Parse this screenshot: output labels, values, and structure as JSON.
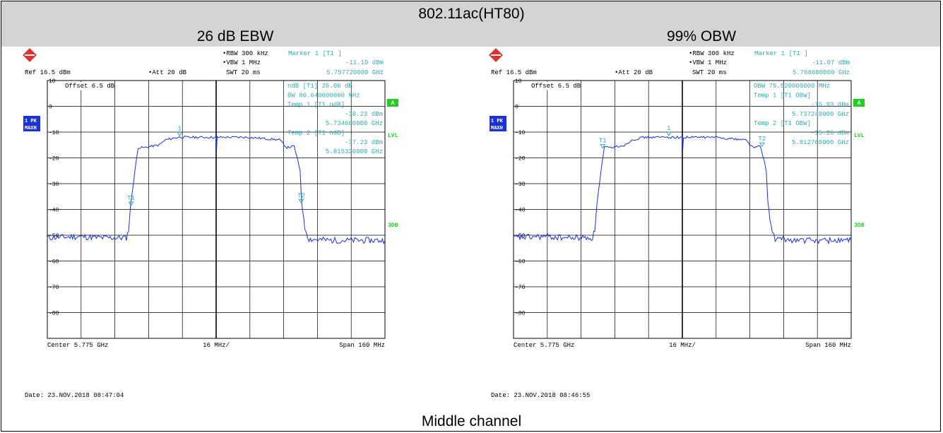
{
  "title": "802.11ac(HT80)",
  "footer": "Middle channel",
  "colors": {
    "text": "#000000",
    "cyan": "#33aaaa",
    "trace": "#1a33d9",
    "green": "#22cc22",
    "header_bg": "#d4d4d4"
  },
  "panels": [
    {
      "subtitle": "26 dB EBW",
      "rbw": "RBW 300 kHz",
      "vbw": "VBW 1 MHz",
      "swt": "SWT 20 ms",
      "ref": "Ref  16.5 dBm",
      "att": "Att  20 dB",
      "marker_title": "Marker 1 [T1 ]",
      "marker_level": "-11.19 dBm",
      "marker_freq": "5.757720000 GHz",
      "offset": "Offset  6.5 dB",
      "info_lines": [
        "ndB [T1]     26.00 dB",
        "BW  80.640000000 MHz",
        "Temp 1 [T1 ndB]",
        "-38.23 dBm",
        "5.734680000 GHz",
        "Temp 2 [T1 ndB]",
        "-37.23 dBm",
        "5.815320000 GHz"
      ],
      "left_box": [
        "1 PK",
        "MAXH"
      ],
      "right_labels": [
        "A",
        "LVL",
        "3DB"
      ],
      "center": "Center 5.775 GHz",
      "per_div": "16 MHz/",
      "span": "Span 160 MHz",
      "date": "Date: 23.NOV.2018  08:47:04",
      "markers": [
        {
          "label": "1",
          "freq_ghz": 5.75772,
          "level_dbm": -11.19
        },
        {
          "label": "T1",
          "freq_ghz": 5.73468,
          "level_dbm": -38.23
        },
        {
          "label": "T2",
          "freq_ghz": 5.81532,
          "level_dbm": -37.23
        }
      ]
    },
    {
      "subtitle": "99% OBW",
      "rbw": "RBW 300 kHz",
      "vbw": "VBW 1 MHz",
      "swt": "SWT 20 ms",
      "ref": "Ref  16.5 dBm",
      "att": "Att  20 dB",
      "marker_title": "Marker 1 [T1 ]",
      "marker_level": "-11.07 dBm",
      "marker_freq": "5.768600000 GHz",
      "offset": "Offset  6.5 dB",
      "info_lines": [
        "OBW 75.520000000 MHz",
        "Temp 1 [T1 OBW]",
        "-15.93 dBm",
        "5.737240000 GHz",
        "Temp 2 [T1 OBW]",
        "-15.26 dBm",
        "5.812760000 GHz"
      ],
      "left_box": [
        "1 PK",
        "MAXH"
      ],
      "right_labels": [
        "A",
        "LVL",
        "3DB"
      ],
      "center": "Center 5.775 GHz",
      "per_div": "16 MHz/",
      "span": "Span 160 MHz",
      "date": "Date: 23.NOV.2018  08:46:55",
      "markers": [
        {
          "label": "1",
          "freq_ghz": 5.7686,
          "level_dbm": -11.07
        },
        {
          "label": "T1",
          "freq_ghz": 5.73724,
          "level_dbm": -15.93
        },
        {
          "label": "T2",
          "freq_ghz": 5.81276,
          "level_dbm": -15.26
        }
      ]
    }
  ],
  "chart_data": [
    {
      "type": "line",
      "title": "26 dB EBW",
      "xlabel": "",
      "ylabel": "",
      "xlim": [
        5.695,
        5.855
      ],
      "ylim": [
        -90,
        10
      ],
      "yticks": [
        10,
        0,
        -10,
        -20,
        -30,
        -40,
        -50,
        -60,
        -70,
        -80
      ],
      "ytick_labels": [
        "10",
        "0",
        "-10",
        "-20",
        "-30",
        "-40",
        "-50",
        "-60",
        "-70",
        "-80"
      ],
      "grid": true,
      "series": [
        {
          "x": [
            5.695,
            5.71,
            5.72,
            5.7325,
            5.7335,
            5.7345,
            5.7365,
            5.738,
            5.741,
            5.748,
            5.751,
            5.757,
            5.775,
            5.7752,
            5.7755,
            5.776,
            5.79,
            5.805,
            5.8085,
            5.812,
            5.8148,
            5.8155,
            5.817,
            5.819,
            5.83,
            5.855
          ],
          "y": [
            -51,
            -50.5,
            -51,
            -51,
            -48,
            -38,
            -25,
            -16,
            -16,
            -15,
            -13,
            -12,
            -12,
            -17,
            -12,
            -12,
            -12,
            -13,
            -16,
            -15.5,
            -25,
            -37,
            -47,
            -51.5,
            -52,
            -52
          ]
        }
      ]
    },
    {
      "type": "line",
      "title": "99% OBW",
      "xlabel": "",
      "ylabel": "",
      "xlim": [
        5.695,
        5.855
      ],
      "ylim": [
        -90,
        10
      ],
      "yticks": [
        10,
        0,
        -10,
        -20,
        -30,
        -40,
        -50,
        -60,
        -70,
        -80
      ],
      "ytick_labels": [
        "10",
        "0",
        "-10",
        "-20",
        "-30",
        "-40",
        "-50",
        "-60",
        "-70",
        "-80"
      ],
      "grid": true,
      "series": [
        {
          "x": [
            5.695,
            5.71,
            5.72,
            5.7325,
            5.7335,
            5.7345,
            5.7365,
            5.738,
            5.741,
            5.748,
            5.751,
            5.757,
            5.775,
            5.7752,
            5.7755,
            5.776,
            5.79,
            5.805,
            5.8085,
            5.812,
            5.8148,
            5.8155,
            5.817,
            5.819,
            5.83,
            5.855
          ],
          "y": [
            -51,
            -50.5,
            -51,
            -51,
            -48,
            -38,
            -25,
            -16,
            -16,
            -15,
            -13,
            -12,
            -12,
            -17,
            -12,
            -12,
            -12,
            -13,
            -16,
            -15.5,
            -25,
            -37,
            -47,
            -51.5,
            -52,
            -52
          ]
        }
      ]
    }
  ]
}
